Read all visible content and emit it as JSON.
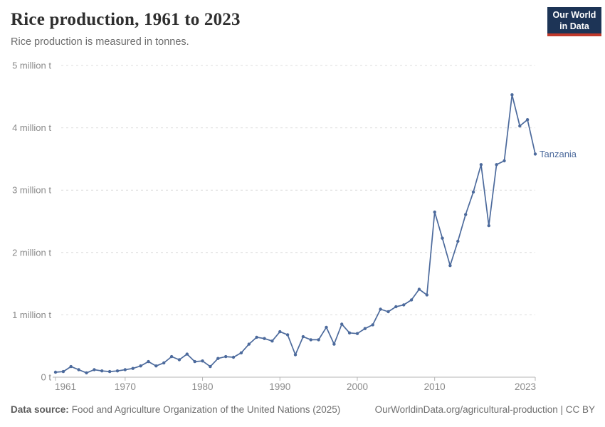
{
  "header": {
    "title": "Rice production, 1961 to 2023",
    "subtitle": "Rice production is measured in tonnes.",
    "logo_line1": "Our World",
    "logo_line2": "in Data"
  },
  "footer": {
    "source_label": "Data source:",
    "source_text": "Food and Agriculture Organization of the United Nations (2025)",
    "right_text": "OurWorldinData.org/agricultural-production | CC BY"
  },
  "chart_data": {
    "type": "line",
    "title": "Rice production, 1961 to 2023",
    "ylabel": "",
    "xlabel": "",
    "unit": "tonnes",
    "values_unit": "million tonnes",
    "xlim": [
      1961,
      2023
    ],
    "ylim": [
      0,
      5
    ],
    "grid": "horizontal dashed",
    "legend_position": "end-of-line label",
    "x_ticks": [
      1961,
      1970,
      1980,
      1990,
      2000,
      2010,
      2023
    ],
    "y_ticks": [
      {
        "value": 0,
        "label": "0 t"
      },
      {
        "value": 1,
        "label": "1 million t"
      },
      {
        "value": 2,
        "label": "2 million t"
      },
      {
        "value": 3,
        "label": "3 million t"
      },
      {
        "value": 4,
        "label": "4 million t"
      },
      {
        "value": 5,
        "label": "5 million t"
      }
    ],
    "series": [
      {
        "name": "Tanzania",
        "color": "#4c6a9c",
        "years": [
          1961,
          1962,
          1963,
          1964,
          1965,
          1966,
          1967,
          1968,
          1969,
          1970,
          1971,
          1972,
          1973,
          1974,
          1975,
          1976,
          1977,
          1978,
          1979,
          1980,
          1981,
          1982,
          1983,
          1984,
          1985,
          1986,
          1987,
          1988,
          1989,
          1990,
          1991,
          1992,
          1993,
          1994,
          1995,
          1996,
          1997,
          1998,
          1999,
          2000,
          2001,
          2002,
          2003,
          2004,
          2005,
          2006,
          2007,
          2008,
          2009,
          2010,
          2011,
          2012,
          2013,
          2014,
          2015,
          2016,
          2017,
          2018,
          2019,
          2020,
          2021,
          2022,
          2023
        ],
        "values": [
          0.08,
          0.09,
          0.17,
          0.12,
          0.07,
          0.12,
          0.1,
          0.09,
          0.1,
          0.12,
          0.14,
          0.18,
          0.25,
          0.18,
          0.23,
          0.33,
          0.28,
          0.37,
          0.25,
          0.26,
          0.17,
          0.3,
          0.33,
          0.32,
          0.39,
          0.53,
          0.64,
          0.62,
          0.58,
          0.73,
          0.68,
          0.36,
          0.65,
          0.6,
          0.6,
          0.8,
          0.53,
          0.85,
          0.71,
          0.7,
          0.78,
          0.84,
          1.09,
          1.05,
          1.13,
          1.16,
          1.24,
          1.41,
          1.32,
          2.65,
          2.23,
          1.79,
          2.18,
          2.61,
          2.97,
          3.41,
          2.43,
          3.41,
          3.47,
          4.53,
          4.03,
          4.13,
          3.58
        ]
      }
    ],
    "colors": {
      "line": "#4c6a9c",
      "grid": "#dcdcdc",
      "axis": "#b5b5b5",
      "tick_text": "#8a8a8a"
    }
  }
}
